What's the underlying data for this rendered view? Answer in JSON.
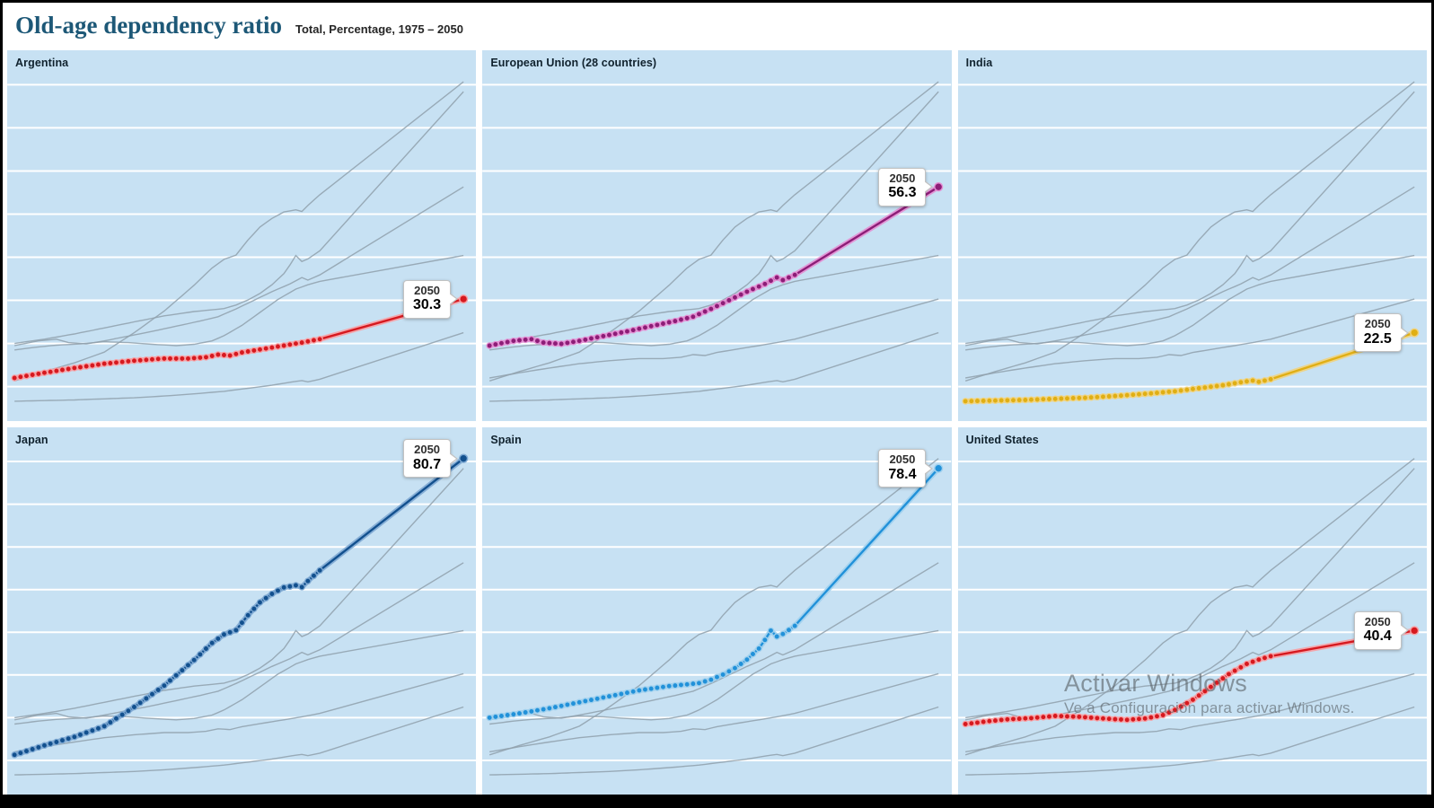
{
  "header": {
    "title": "Old-age dependency ratio",
    "subtitle": "Total, Percentage, 1975 – 2050"
  },
  "watermark": {
    "line1": "Activar Windows",
    "line2": "Ve a Configuración para activar Windows."
  },
  "panels": [
    {
      "name": "Argentina",
      "label_year": "2050",
      "label_value": "30.3"
    },
    {
      "name": "European Union (28 countries)",
      "label_year": "2050",
      "label_value": "56.3"
    },
    {
      "name": "India",
      "label_year": "2050",
      "label_value": "22.5"
    },
    {
      "name": "Japan",
      "label_year": "2050",
      "label_value": "80.7"
    },
    {
      "name": "Spain",
      "label_year": "2050",
      "label_value": "78.4"
    },
    {
      "name": "United States",
      "label_year": "2050",
      "label_value": "40.4"
    }
  ],
  "colors": {
    "panel_bg": "#c7e1f3",
    "gridline": "#ffffff",
    "context_line": "#8fa0ab",
    "header_bg": "#ffffff",
    "title_text": "#1d5877",
    "frame": "#000000"
  },
  "chart_data": {
    "type": "line",
    "title": "Old-age dependency ratio",
    "subtitle": "Total, Percentage, 1975 – 2050",
    "layout": "six small-multiple panels; each panel highlights one country in color with yearly dots, remaining five countries drawn as gray context lines",
    "x_range": [
      1975,
      2050
    ],
    "ylim": [
      2,
      88
    ],
    "gridlines": "horizontal white lines every 10 percentage points, no axis tick labels visible",
    "dots_until_year": 2026,
    "projection_note": "straight-line projection from end of dotted series to labelled 2050 value",
    "series": [
      {
        "name": "Argentina",
        "color": "#d6191f",
        "halo": "#f7a0a4",
        "value_2050": 30.3,
        "points": [
          [
            1975,
            12.0
          ],
          [
            1980,
            13.2
          ],
          [
            1985,
            14.3
          ],
          [
            1990,
            15.3
          ],
          [
            1995,
            16.0
          ],
          [
            2000,
            16.5
          ],
          [
            2004,
            16.5
          ],
          [
            2007,
            16.8
          ],
          [
            2009,
            17.4
          ],
          [
            2011,
            17.2
          ],
          [
            2013,
            17.9
          ],
          [
            2016,
            18.6
          ],
          [
            2020,
            19.5
          ],
          [
            2023,
            20.2
          ],
          [
            2026,
            21.0
          ],
          [
            2050,
            30.3
          ]
        ]
      },
      {
        "name": "European Union (28 countries)",
        "color": "#8d1d77",
        "halo": "#e38fd3",
        "value_2050": 56.3,
        "points": [
          [
            1975,
            19.5
          ],
          [
            1979,
            20.6
          ],
          [
            1982,
            21.0
          ],
          [
            1984,
            20.2
          ],
          [
            1987,
            19.9
          ],
          [
            1990,
            20.6
          ],
          [
            1994,
            21.7
          ],
          [
            1998,
            22.8
          ],
          [
            2002,
            24.0
          ],
          [
            2006,
            25.2
          ],
          [
            2009,
            26.2
          ],
          [
            2012,
            28.0
          ],
          [
            2015,
            30.0
          ],
          [
            2018,
            32.0
          ],
          [
            2021,
            33.8
          ],
          [
            2023,
            35.3
          ],
          [
            2024,
            34.7
          ],
          [
            2026,
            35.9
          ],
          [
            2050,
            56.3
          ]
        ]
      },
      {
        "name": "India",
        "color": "#e0af14",
        "halo": "#f0d37f",
        "value_2050": 22.5,
        "points": [
          [
            1975,
            6.6
          ],
          [
            1985,
            6.9
          ],
          [
            1995,
            7.4
          ],
          [
            2000,
            7.8
          ],
          [
            2005,
            8.3
          ],
          [
            2010,
            8.9
          ],
          [
            2014,
            9.6
          ],
          [
            2018,
            10.3
          ],
          [
            2021,
            11.0
          ],
          [
            2023,
            11.4
          ],
          [
            2024,
            11.1
          ],
          [
            2026,
            11.7
          ],
          [
            2050,
            22.5
          ]
        ]
      },
      {
        "name": "Japan",
        "color": "#12508e",
        "halo": "#7ea9d3",
        "value_2050": 80.7,
        "points": [
          [
            1975,
            11.3
          ],
          [
            1980,
            13.5
          ],
          [
            1985,
            15.5
          ],
          [
            1990,
            18.0
          ],
          [
            1995,
            22.5
          ],
          [
            2000,
            27.5
          ],
          [
            2005,
            33.5
          ],
          [
            2008,
            37.5
          ],
          [
            2010,
            39.5
          ],
          [
            2012,
            40.5
          ],
          [
            2014,
            44.0
          ],
          [
            2016,
            47.0
          ],
          [
            2018,
            49.0
          ],
          [
            2020,
            50.5
          ],
          [
            2022,
            51.0
          ],
          [
            2023,
            50.6
          ],
          [
            2024,
            52.0
          ],
          [
            2026,
            54.5
          ],
          [
            2050,
            80.7
          ]
        ]
      },
      {
        "name": "Spain",
        "color": "#2191d9",
        "halo": "#9fd0ee",
        "value_2050": 78.4,
        "points": [
          [
            1975,
            20.0
          ],
          [
            1980,
            21.0
          ],
          [
            1985,
            22.2
          ],
          [
            1990,
            23.6
          ],
          [
            1995,
            25.0
          ],
          [
            2000,
            26.4
          ],
          [
            2005,
            27.4
          ],
          [
            2008,
            27.8
          ],
          [
            2010,
            28.1
          ],
          [
            2012,
            28.9
          ],
          [
            2014,
            30.1
          ],
          [
            2016,
            31.6
          ],
          [
            2018,
            33.6
          ],
          [
            2020,
            36.2
          ],
          [
            2021,
            38.2
          ],
          [
            2022,
            40.4
          ],
          [
            2023,
            39.0
          ],
          [
            2024,
            39.6
          ],
          [
            2026,
            41.5
          ],
          [
            2050,
            78.4
          ]
        ]
      },
      {
        "name": "United States",
        "color": "#d6191f",
        "halo": "#f7a0a4",
        "value_2050": 40.4,
        "points": [
          [
            1975,
            18.5
          ],
          [
            1979,
            19.2
          ],
          [
            1982,
            19.6
          ],
          [
            1986,
            19.9
          ],
          [
            1990,
            20.4
          ],
          [
            1994,
            20.2
          ],
          [
            1998,
            19.8
          ],
          [
            2002,
            19.5
          ],
          [
            2005,
            19.8
          ],
          [
            2008,
            20.6
          ],
          [
            2010,
            21.8
          ],
          [
            2013,
            24.2
          ],
          [
            2016,
            27.2
          ],
          [
            2019,
            30.2
          ],
          [
            2022,
            32.6
          ],
          [
            2024,
            33.6
          ],
          [
            2026,
            34.4
          ],
          [
            2050,
            40.4
          ]
        ]
      }
    ]
  }
}
